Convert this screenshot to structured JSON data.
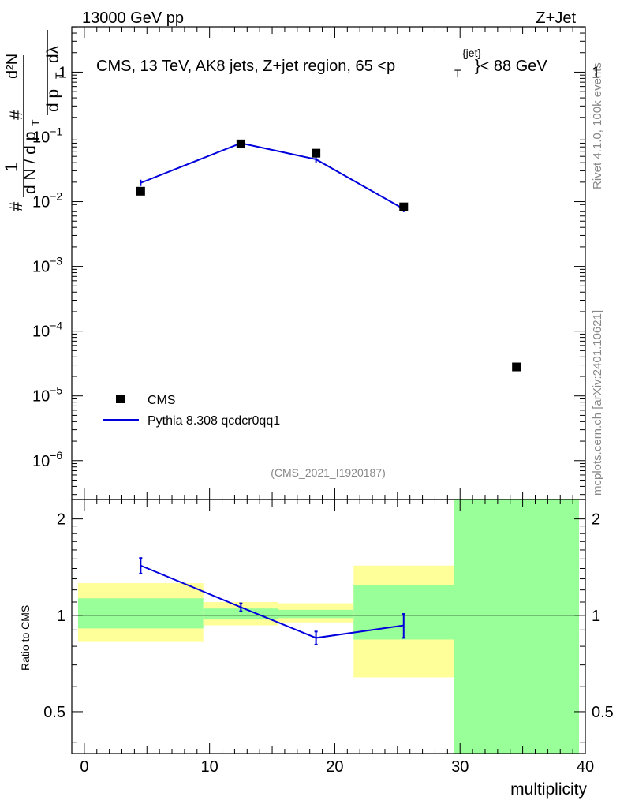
{
  "header": {
    "left": "13000 GeV pp",
    "right": "Z+Jet"
  },
  "side_labels": {
    "rivet": "Rivet 4.1.0,  100k events",
    "mcplots": "mcplots.cern.ch [arXiv:2401.10621]"
  },
  "top_panel": {
    "title": "CMS, 13 TeV, AK8 jets, Z+jet region, 65 <p",
    "title_sub": "T",
    "title_sup": "{jet}",
    "title_end": "}< 88 GeV",
    "analysis_id": "(CMS_2021_I1920187)",
    "ylabel": {
      "hash1": "#",
      "one": "1",
      "dN": "d N / d p",
      "dN_sub": "T",
      "hash2": "#",
      "d2N": "d²N",
      "dpT": "d p",
      "dpT_sub": "T",
      "dlambda": "dλ"
    },
    "yticks": [
      {
        "base": "1",
        "exp": ""
      },
      {
        "base": "10",
        "exp": "−1"
      },
      {
        "base": "10",
        "exp": "−2"
      },
      {
        "base": "10",
        "exp": "−3"
      },
      {
        "base": "10",
        "exp": "−4"
      },
      {
        "base": "10",
        "exp": "−5"
      },
      {
        "base": "10",
        "exp": "−6"
      }
    ],
    "legend": {
      "cms": "CMS",
      "mc": "Pythia 8.308 qcdcr0qq1"
    }
  },
  "bottom_panel": {
    "ylabel": "Ratio to CMS",
    "yticks": [
      "2",
      "1",
      "0.5"
    ],
    "xticks": [
      "0",
      "10",
      "20",
      "30",
      "40"
    ],
    "xlabel": "multiplicity"
  },
  "colors": {
    "mc": "#0000dd",
    "band_inner": "#99ff99",
    "band_outer": "#ffff99",
    "data": "#000000"
  },
  "chart_data": {
    "type": "scatter",
    "x_range": [
      -1,
      40
    ],
    "y_range_log10": [
      -6.6,
      0.7
    ],
    "ratio_range": [
      0.37,
      2.3
    ],
    "data_points": [
      {
        "x": 4.5,
        "y": 0.0145
      },
      {
        "x": 12.5,
        "y": 0.078
      },
      {
        "x": 18.5,
        "y": 0.056
      },
      {
        "x": 25.5,
        "y": 0.0083
      },
      {
        "x": 34.5,
        "y": 2.8e-05
      }
    ],
    "mc_points": [
      {
        "x": 4.5,
        "y": 0.0195,
        "ratio": 1.43,
        "ratio_err": 0.08
      },
      {
        "x": 12.5,
        "y": 0.08,
        "ratio": 1.06,
        "ratio_err": 0.03
      },
      {
        "x": 18.5,
        "y": 0.045,
        "ratio": 0.85,
        "ratio_err": 0.04
      },
      {
        "x": 25.5,
        "y": 0.0077,
        "ratio": 0.93,
        "ratio_err": 0.08
      }
    ],
    "bands": [
      {
        "x0": -0.5,
        "x1": 9.5,
        "inner": [
          0.91,
          1.13
        ],
        "outer": [
          0.83,
          1.26
        ]
      },
      {
        "x0": 9.5,
        "x1": 15.5,
        "inner": [
          0.97,
          1.05
        ],
        "outer": [
          0.93,
          1.1
        ]
      },
      {
        "x0": 15.5,
        "x1": 21.5,
        "inner": [
          0.98,
          1.04
        ],
        "outer": [
          0.95,
          1.09
        ]
      },
      {
        "x0": 21.5,
        "x1": 29.5,
        "inner": [
          0.84,
          1.24
        ],
        "outer": [
          0.64,
          1.43
        ]
      },
      {
        "x0": 29.5,
        "x1": 39.5,
        "inner": [
          0.37,
          2.3
        ],
        "outer": [
          0.37,
          2.3
        ]
      }
    ]
  }
}
